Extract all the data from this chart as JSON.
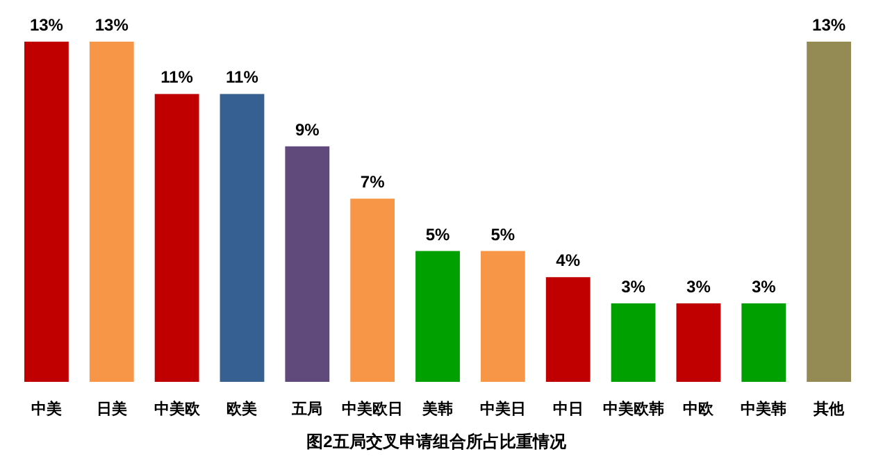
{
  "chart_data": {
    "type": "bar",
    "title": "图2五局交叉申请组合所占比重情况",
    "categories": [
      "中美",
      "日美",
      "中美欧",
      "欧美",
      "五局",
      "中美欧日",
      "美韩",
      "中美日",
      "中日",
      "中美欧韩",
      "中欧",
      "中美韩",
      "其他"
    ],
    "values": [
      13,
      13,
      11,
      11,
      9,
      7,
      5,
      5,
      4,
      3,
      3,
      3,
      13
    ],
    "value_labels": [
      "13%",
      "13%",
      "11%",
      "11%",
      "9%",
      "7%",
      "5%",
      "5%",
      "4%",
      "3%",
      "3%",
      "3%",
      "13%"
    ],
    "colors": [
      "#c00000",
      "#f79646",
      "#c00000",
      "#376092",
      "#604a7b",
      "#f79646",
      "#00a000",
      "#f79646",
      "#c00000",
      "#00a000",
      "#c00000",
      "#00a000",
      "#948a54"
    ],
    "grid": false
  }
}
